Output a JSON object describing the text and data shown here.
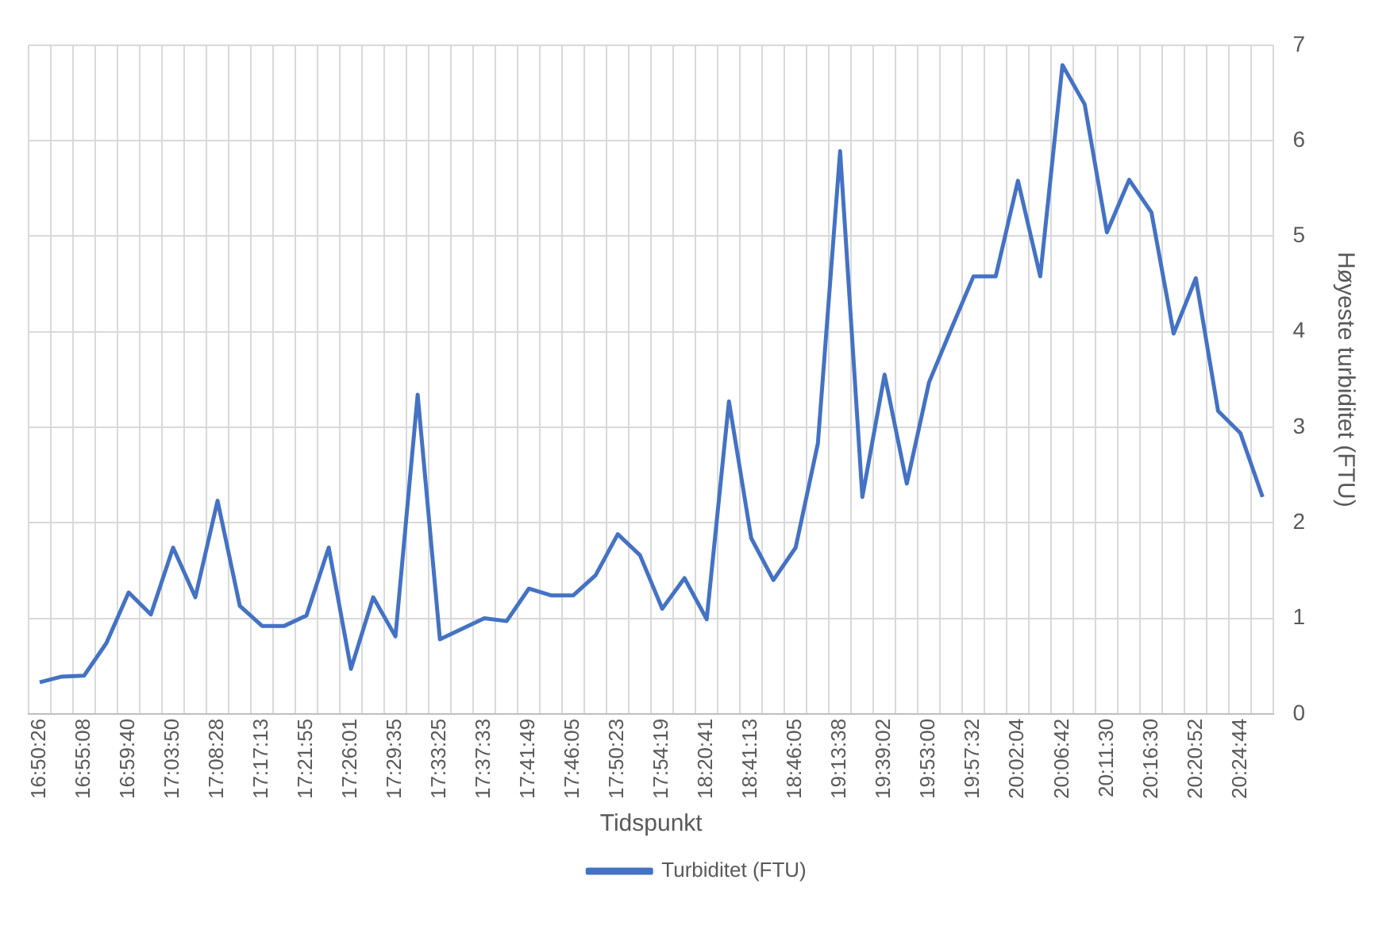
{
  "chart_data": {
    "type": "line",
    "xlabel": "Tidspunkt",
    "ylabel": "Høyeste turbiditet (FTU)",
    "categories": [
      "16:50:26",
      null,
      "16:55:08",
      null,
      "16:59:40",
      null,
      "17:03:50",
      null,
      "17:08:28",
      null,
      "17:17:13",
      null,
      "17:21:55",
      null,
      "17:26:01",
      null,
      "17:29:35",
      null,
      "17:33:25",
      null,
      "17:37:33",
      null,
      "17:41:49",
      null,
      "17:46:05",
      null,
      "17:50:23",
      null,
      "17:54:19",
      null,
      "18:20:41",
      null,
      "18:41:13",
      null,
      "18:46:05",
      null,
      "19:13:38",
      null,
      "19:39:02",
      null,
      "19:53:00",
      null,
      "19:57:32",
      null,
      "20:02:04",
      null,
      "20:06:42",
      null,
      "20:11:30",
      null,
      "20:16:30",
      null,
      "20:20:52",
      null,
      "20:24:44",
      null
    ],
    "series": [
      {
        "name": "Turbiditet (FTU)",
        "color": "#4472c4",
        "values": [
          0.33,
          0.39,
          0.4,
          0.74,
          1.27,
          1.04,
          1.74,
          1.22,
          2.23,
          1.13,
          0.92,
          0.92,
          1.03,
          1.74,
          0.47,
          1.22,
          0.81,
          3.34,
          0.78,
          0.89,
          1.0,
          0.97,
          1.31,
          1.24,
          1.24,
          1.45,
          1.88,
          1.66,
          1.1,
          1.42,
          0.99,
          3.27,
          1.84,
          1.4,
          1.74,
          2.83,
          5.89,
          2.27,
          3.55,
          2.41,
          3.47,
          4.03,
          4.58,
          4.58,
          5.58,
          4.58,
          6.79,
          6.38,
          5.04,
          5.59,
          5.25,
          3.98,
          4.56,
          3.17,
          2.94,
          2.27
        ]
      }
    ],
    "ylim": [
      0,
      7
    ],
    "yticks": [
      0,
      1,
      2,
      3,
      4,
      5,
      6,
      7
    ],
    "grid": true,
    "legend": "bottom",
    "marker": "none",
    "line_style": "solid"
  }
}
